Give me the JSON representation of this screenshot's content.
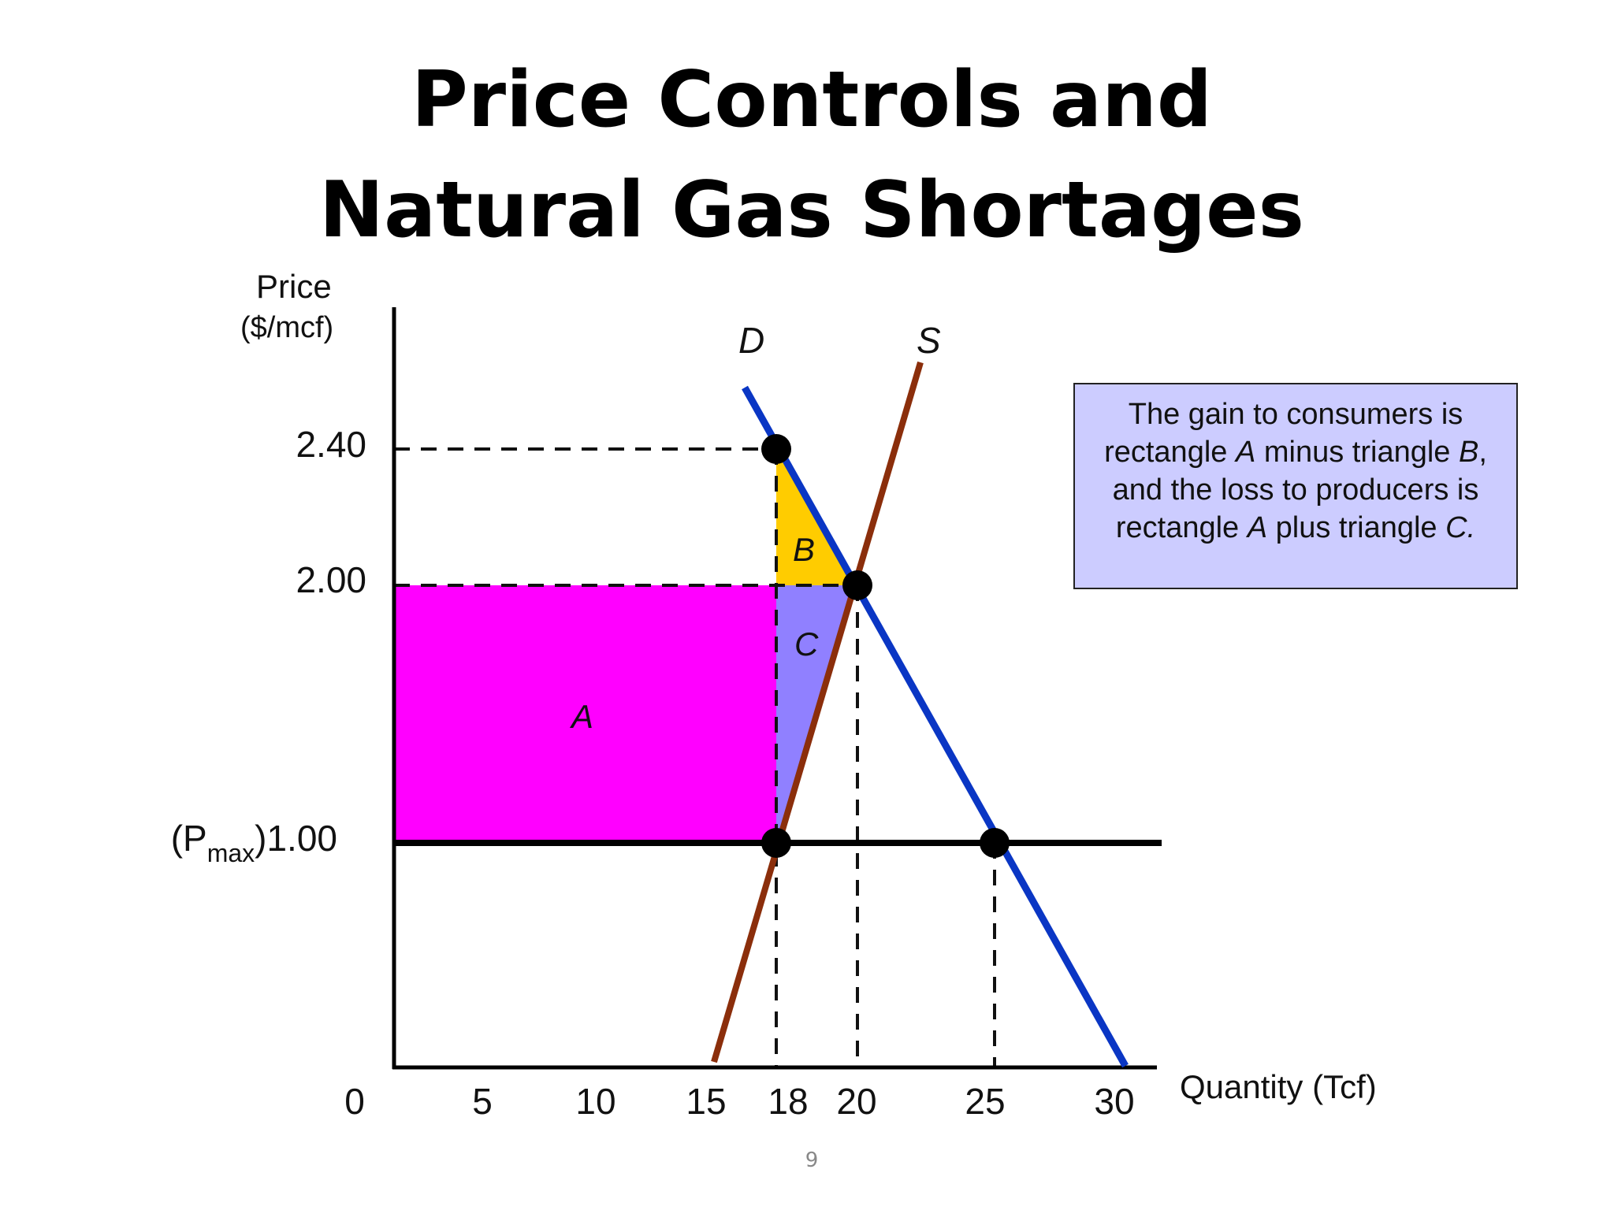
{
  "slide": {
    "title_line1": "Price Controls and",
    "title_line2": "Natural Gas Shortages",
    "page_number": "9"
  },
  "note": {
    "line1": "The gain to consumers is",
    "line2_pre": "rectangle ",
    "line2_a": "A",
    "line2_mid": " minus triangle ",
    "line2_b": "B",
    "line2_post": ",",
    "line3": "and the loss to  producers is",
    "line4_pre": "rectangle ",
    "line4_a": "A",
    "line4_mid": "  plus triangle ",
    "line4_c": "C."
  },
  "chart_data": {
    "type": "line",
    "ylabel": "Price",
    "yunit": "($/mcf)",
    "xlabel": "Quantity (Tcf)",
    "xlim": [
      0,
      30
    ],
    "ylim": [
      0,
      2.8
    ],
    "x_ticks": [
      {
        "value": 0,
        "label": "0"
      },
      {
        "value": 5,
        "label": "5"
      },
      {
        "value": 10,
        "label": "10"
      },
      {
        "value": 15,
        "label": "15"
      },
      {
        "value": 18,
        "label": "18"
      },
      {
        "value": 20,
        "label": "20"
      },
      {
        "value": 25,
        "label": "25"
      },
      {
        "value": 30,
        "label": "30"
      }
    ],
    "y_ticks": [
      {
        "value": 2.4,
        "label": "2.40"
      },
      {
        "value": 2.0,
        "label": "2.00"
      }
    ],
    "pmax": {
      "value": 1.0,
      "prefix": "(P",
      "sub": "max",
      "suffix": ")1.00"
    },
    "series": [
      {
        "name": "D",
        "color": "#0a36c4",
        "points": [
          [
            15.0,
            2.0
          ],
          [
            29.1,
            -1.42
          ]
        ]
      },
      {
        "name": "S",
        "color": "#8b2e0b",
        "points": [
          [
            12.65,
            -0.67
          ],
          [
            20.95,
            2.08
          ]
        ]
      }
    ],
    "demand_segment": [
      [
        13.8,
        2.57
      ],
      [
        28.6,
        -0.98
      ]
    ],
    "supply_segment": [
      [
        12.85,
        -1.05
      ],
      [
        19.8,
        2.96
      ]
    ],
    "regions": [
      {
        "name": "A",
        "color": "#ff00ff",
        "label_pos": [
          7.2,
          1.48
        ]
      },
      {
        "name": "B",
        "color": "#ffcc00",
        "label_pos": [
          16.0,
          2.1
        ]
      },
      {
        "name": "C",
        "color": "#9080ff",
        "label_pos": [
          16.1,
          1.8
        ]
      }
    ],
    "equilibrium_points": [
      [
        15.0,
        2.4
      ],
      [
        18.1,
        2.0
      ],
      [
        15.0,
        1.0
      ],
      [
        23.6,
        1.0
      ]
    ],
    "legend": "none",
    "grid": false
  }
}
